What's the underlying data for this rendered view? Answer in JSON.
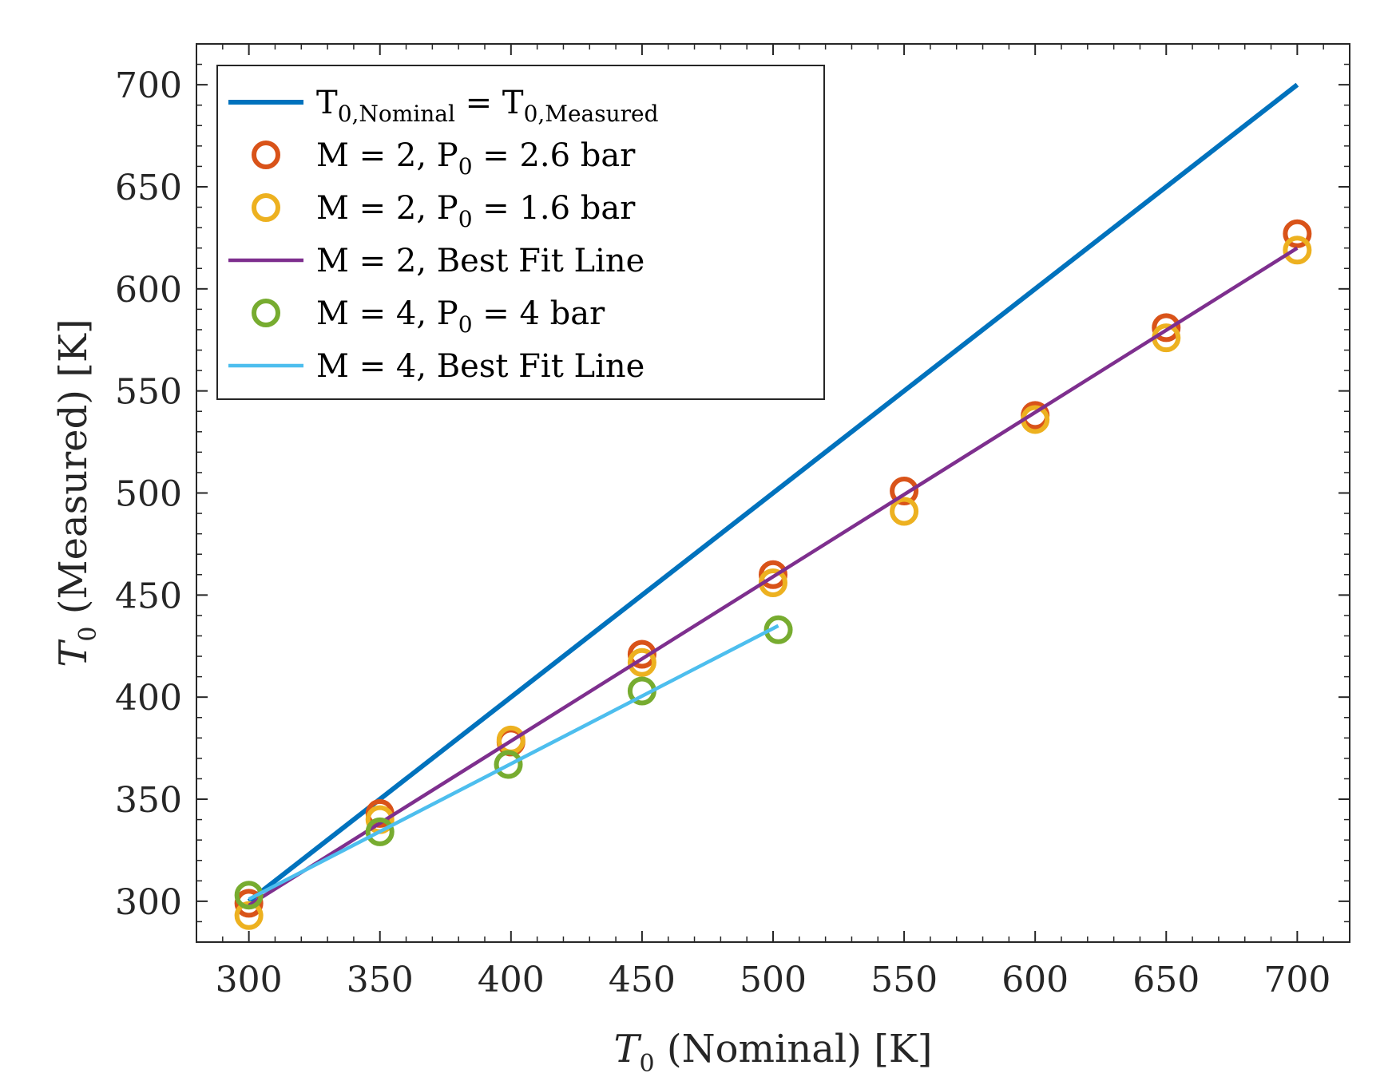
{
  "chart_data": {
    "type": "scatter",
    "xlabel": {
      "var": "T",
      "sub": "0",
      "rest": " (Nominal) [K]"
    },
    "ylabel": {
      "var": "T",
      "sub": "0",
      "rest": " (Measured) [K]"
    },
    "xlim": [
      280,
      720
    ],
    "ylim": [
      280,
      720
    ],
    "xticks": [
      300,
      350,
      400,
      450,
      500,
      550,
      600,
      650,
      700
    ],
    "yticks": [
      300,
      350,
      400,
      450,
      500,
      550,
      600,
      650,
      700
    ],
    "grid": false,
    "legend_position": "top-left",
    "series": [
      {
        "name": "T0,Nominal = T0,Measured",
        "legend": {
          "main": "T",
          "sub": "0,Nominal",
          "mid": " = T",
          "sub2": "0,Measured",
          "rest": ""
        },
        "kind": "line",
        "color": "#0072BD",
        "x": [
          300,
          700
        ],
        "y": [
          300,
          700
        ]
      },
      {
        "name": "M = 2, P0 = 2.6 bar",
        "legend": {
          "main": "M = 2, P",
          "sub": "0",
          "rest": " = 2.6 bar"
        },
        "kind": "marker",
        "color": "#D95319",
        "x": [
          300,
          350,
          400,
          450,
          500,
          550,
          600,
          650,
          700
        ],
        "y": [
          299,
          343,
          378,
          421,
          460,
          501,
          538,
          581,
          627
        ]
      },
      {
        "name": "M = 2, P0 = 1.6 bar",
        "legend": {
          "main": "M = 2, P",
          "sub": "0",
          "rest": " = 1.6 bar"
        },
        "kind": "marker",
        "color": "#EDB120",
        "x": [
          300,
          350,
          400,
          450,
          500,
          550,
          600,
          650,
          700
        ],
        "y": [
          293,
          340,
          379,
          417,
          456,
          491,
          536,
          576,
          619
        ]
      },
      {
        "name": "M = 2, Best Fit Line",
        "legend": {
          "main": "M = 2, Best Fit Line"
        },
        "kind": "line",
        "color": "#7E2F8E",
        "x": [
          300,
          700
        ],
        "y": [
          298,
          620
        ]
      },
      {
        "name": "M = 4, P0 = 4 bar",
        "legend": {
          "main": "M = 4, P",
          "sub": "0",
          "rest": " = 4 bar"
        },
        "kind": "marker",
        "color": "#77AC30",
        "x": [
          300,
          350,
          399,
          450,
          502
        ],
        "y": [
          303,
          334,
          367,
          403,
          433
        ]
      },
      {
        "name": "M = 4, Best Fit Line",
        "legend": {
          "main": "M = 4, Best Fit Line"
        },
        "kind": "line",
        "color": "#4DBEEE",
        "x": [
          300,
          502
        ],
        "y": [
          301,
          435
        ]
      }
    ]
  }
}
